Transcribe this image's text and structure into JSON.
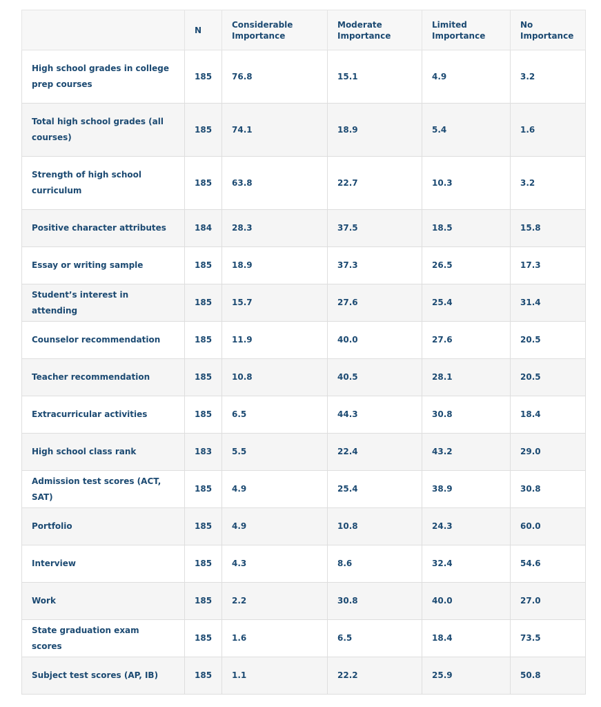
{
  "table": {
    "headers": {
      "factor": "",
      "n": "N",
      "considerable": "Considerable Importance",
      "moderate": "Moderate Importance",
      "limited": "Limited Importance",
      "none": "No Importance"
    },
    "rows": [
      {
        "factor": "High school grades in college prep courses",
        "n": "185",
        "considerable": "76.8",
        "moderate": "15.1",
        "limited": "4.9",
        "none": "3.2"
      },
      {
        "factor": "Total high school grades (all courses)",
        "n": "185",
        "considerable": "74.1",
        "moderate": "18.9",
        "limited": "5.4",
        "none": "1.6"
      },
      {
        "factor": "Strength of high school curriculum",
        "n": "185",
        "considerable": "63.8",
        "moderate": "22.7",
        "limited": "10.3",
        "none": "3.2"
      },
      {
        "factor": "Positive character attributes",
        "n": "184",
        "considerable": "28.3",
        "moderate": "37.5",
        "limited": "18.5",
        "none": "15.8"
      },
      {
        "factor": "Essay or writing sample",
        "n": "185",
        "considerable": "18.9",
        "moderate": "37.3",
        "limited": "26.5",
        "none": "17.3"
      },
      {
        "factor": "Student’s interest in attending",
        "n": "185",
        "considerable": "15.7",
        "moderate": "27.6",
        "limited": "25.4",
        "none": "31.4"
      },
      {
        "factor": "Counselor recommendation",
        "n": "185",
        "considerable": "11.9",
        "moderate": "40.0",
        "limited": "27.6",
        "none": "20.5"
      },
      {
        "factor": "Teacher recommendation",
        "n": "185",
        "considerable": "10.8",
        "moderate": "40.5",
        "limited": "28.1",
        "none": "20.5"
      },
      {
        "factor": "Extracurricular activities",
        "n": "185",
        "considerable": "6.5",
        "moderate": "44.3",
        "limited": "30.8",
        "none": "18.4"
      },
      {
        "factor": "High school class rank",
        "n": "183",
        "considerable": "5.5",
        "moderate": "22.4",
        "limited": "43.2",
        "none": "29.0"
      },
      {
        "factor": "Admission test scores (ACT, SAT)",
        "n": "185",
        "considerable": "4.9",
        "moderate": "25.4",
        "limited": "38.9",
        "none": "30.8"
      },
      {
        "factor": "Portfolio",
        "n": "185",
        "considerable": "4.9",
        "moderate": "10.8",
        "limited": "24.3",
        "none": "60.0"
      },
      {
        "factor": "Interview",
        "n": "185",
        "considerable": "4.3",
        "moderate": "8.6",
        "limited": "32.4",
        "none": "54.6"
      },
      {
        "factor": "Work",
        "n": "185",
        "considerable": "2.2",
        "moderate": "30.8",
        "limited": "40.0",
        "none": "27.0"
      },
      {
        "factor": "State graduation exam scores",
        "n": "185",
        "considerable": "1.6",
        "moderate": "6.5",
        "limited": "18.4",
        "none": "73.5"
      },
      {
        "factor": "Subject test scores (AP, IB)",
        "n": "185",
        "considerable": "1.1",
        "moderate": "22.2",
        "limited": "25.9",
        "none": "50.8"
      }
    ]
  }
}
